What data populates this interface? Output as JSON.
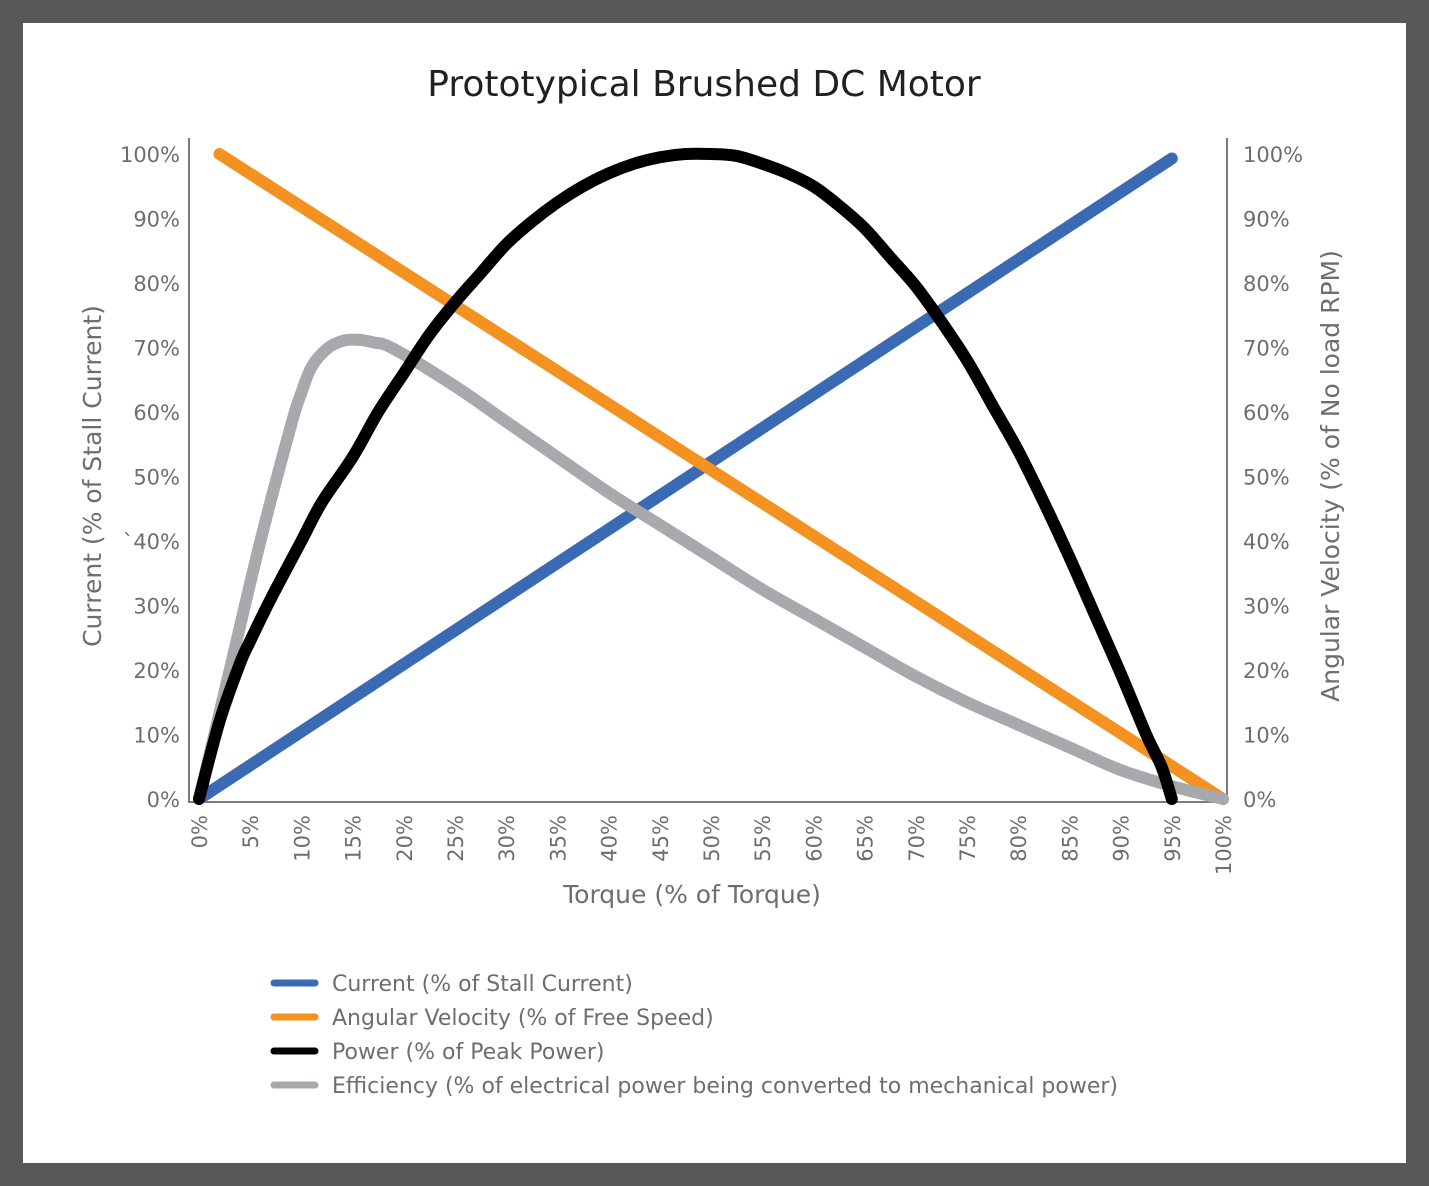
{
  "chart_data": {
    "type": "line",
    "title": "Prototypical Brushed DC Motor",
    "xlabel": "Torque (% of Torque)",
    "ylabel_left": "Current (% of Stall Current)",
    "ylabel_right": "Angular Velocity (% of No load RPM)",
    "xlim": [
      0,
      100
    ],
    "ylim": [
      0,
      100
    ],
    "x_ticks": [
      0,
      5,
      10,
      15,
      20,
      25,
      30,
      35,
      40,
      45,
      50,
      55,
      60,
      65,
      70,
      75,
      80,
      85,
      90,
      95,
      100
    ],
    "x_tick_labels": [
      "0%",
      "5%",
      "10%",
      "15%",
      "20%",
      "25%",
      "30%",
      "35%",
      "40%",
      "45%",
      "50%",
      "55%",
      "60%",
      "65%",
      "70%",
      "75%",
      "80%",
      "85%",
      "90%",
      "95%",
      "100%"
    ],
    "y_ticks": [
      0,
      10,
      20,
      30,
      40,
      50,
      60,
      70,
      80,
      90,
      100
    ],
    "y_tick_labels_left": [
      "0%",
      "10%",
      "20%",
      "30%",
      "`40%",
      "50%",
      "60%",
      "70%",
      "80%",
      "90%",
      "100%"
    ],
    "y_tick_labels_right": [
      "0%",
      "10%",
      "20%",
      "30%",
      "40%",
      "50%",
      "60%",
      "70%",
      "80%",
      "90%",
      "100%"
    ],
    "grid": false,
    "legend_position": "bottom",
    "series": [
      {
        "name": "Current (% of Stall Current)",
        "color": "#3a6ab3",
        "points": [
          [
            0,
            0
          ],
          [
            95,
            99.3
          ]
        ]
      },
      {
        "name": "Angular Velocity (% of Free Speed)",
        "color": "#f39220",
        "points": [
          [
            2,
            100
          ],
          [
            100,
            0
          ]
        ]
      },
      {
        "name": "Power (% of Peak Power)",
        "color": "#000000",
        "points": [
          [
            0,
            0
          ],
          [
            2,
            12
          ],
          [
            4,
            21
          ],
          [
            5,
            24.5
          ],
          [
            7,
            31
          ],
          [
            10,
            40
          ],
          [
            12,
            46
          ],
          [
            15,
            53
          ],
          [
            17.5,
            60
          ],
          [
            20,
            66
          ],
          [
            22.5,
            72
          ],
          [
            25,
            77
          ],
          [
            27.5,
            81.5
          ],
          [
            30,
            86
          ],
          [
            32.5,
            89.5
          ],
          [
            35,
            92.5
          ],
          [
            37.5,
            95
          ],
          [
            40,
            97
          ],
          [
            42.5,
            98.5
          ],
          [
            45,
            99.5
          ],
          [
            47.5,
            100
          ],
          [
            50,
            100
          ],
          [
            52.5,
            99.7
          ],
          [
            55,
            98.5
          ],
          [
            57.5,
            97
          ],
          [
            60,
            95
          ],
          [
            62.5,
            92
          ],
          [
            65,
            88.5
          ],
          [
            67.5,
            84
          ],
          [
            70,
            79.5
          ],
          [
            72.5,
            74
          ],
          [
            75,
            68
          ],
          [
            77.5,
            61
          ],
          [
            80,
            54
          ],
          [
            82.5,
            46
          ],
          [
            85,
            37.5
          ],
          [
            87.5,
            28.5
          ],
          [
            90,
            19.5
          ],
          [
            92.5,
            10
          ],
          [
            94,
            5
          ],
          [
            95,
            0
          ]
        ]
      },
      {
        "name": "Efficiency (% of electrical power being converted to mechanical power)",
        "color": "#a7a9ac",
        "points": [
          [
            0,
            0
          ],
          [
            3,
            20
          ],
          [
            6,
            40
          ],
          [
            9,
            58
          ],
          [
            10,
            63
          ],
          [
            11,
            67
          ],
          [
            12.5,
            69.8
          ],
          [
            14,
            71
          ],
          [
            15.5,
            71.2
          ],
          [
            17,
            70.8
          ],
          [
            19,
            69.8
          ],
          [
            25,
            64
          ],
          [
            30,
            58.5
          ],
          [
            35,
            53
          ],
          [
            40,
            47.5
          ],
          [
            45,
            42.5
          ],
          [
            50,
            37.5
          ],
          [
            55,
            32.5
          ],
          [
            60,
            28
          ],
          [
            65,
            23.5
          ],
          [
            70,
            19
          ],
          [
            75,
            15
          ],
          [
            80,
            11.5
          ],
          [
            85,
            8
          ],
          [
            90,
            4.5
          ],
          [
            95,
            2
          ],
          [
            100,
            0
          ]
        ]
      }
    ]
  }
}
